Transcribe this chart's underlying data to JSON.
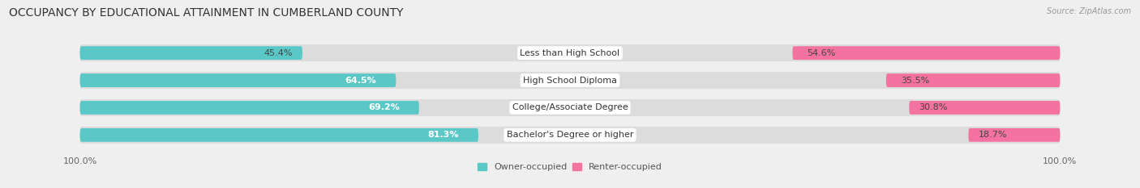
{
  "title": "OCCUPANCY BY EDUCATIONAL ATTAINMENT IN CUMBERLAND COUNTY",
  "source": "Source: ZipAtlas.com",
  "categories": [
    "Less than High School",
    "High School Diploma",
    "College/Associate Degree",
    "Bachelor's Degree or higher"
  ],
  "owner_pct": [
    45.4,
    64.5,
    69.2,
    81.3
  ],
  "renter_pct": [
    54.6,
    35.5,
    30.8,
    18.7
  ],
  "owner_color": "#5BC8C8",
  "renter_color": "#F472A0",
  "bg_color": "#EFEFEF",
  "bar_bg_color": "#DCDCDC",
  "title_fontsize": 10,
  "label_fontsize": 8,
  "pct_fontsize": 8,
  "axis_label_fontsize": 8,
  "bar_height": 0.62,
  "legend_owner": "Owner-occupied",
  "legend_renter": "Renter-occupied"
}
